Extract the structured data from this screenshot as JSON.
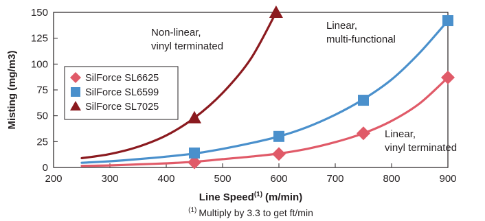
{
  "chart_data": {
    "type": "line",
    "xlabel": "Line Speed",
    "xlabel_superscript": "(1)",
    "xlabel_unit": "(m/min)",
    "ylabel": "Misting (mg/m3)",
    "xlim": [
      200,
      900
    ],
    "ylim": [
      0,
      150
    ],
    "x_ticks": [
      200,
      300,
      400,
      500,
      600,
      700,
      800,
      900
    ],
    "y_ticks": [
      0,
      25,
      50,
      75,
      100,
      125,
      150
    ],
    "grid": false,
    "legend_position": "left",
    "footnote_marker": "(1)",
    "footnote": "Multiply by 3.3 to get ft/min",
    "series": [
      {
        "name": "SilForce SL6625",
        "marker": "diamond",
        "color": "#e05a68",
        "points": [
          [
            450,
            5
          ],
          [
            600,
            13
          ],
          [
            750,
            33
          ],
          [
            900,
            87
          ]
        ],
        "curve": [
          [
            250,
            1.5
          ],
          [
            300,
            2
          ],
          [
            350,
            3
          ],
          [
            400,
            4
          ],
          [
            450,
            5.5
          ],
          [
            500,
            8
          ],
          [
            550,
            10.5
          ],
          [
            600,
            13.5
          ],
          [
            650,
            18
          ],
          [
            700,
            24.5
          ],
          [
            750,
            33
          ],
          [
            800,
            45
          ],
          [
            850,
            62
          ],
          [
            900,
            87
          ]
        ]
      },
      {
        "name": "SilForce SL6599",
        "marker": "square",
        "color": "#4a90cc",
        "points": [
          [
            450,
            14
          ],
          [
            600,
            30
          ],
          [
            750,
            65
          ],
          [
            900,
            142
          ]
        ],
        "curve": [
          [
            250,
            4.5
          ],
          [
            300,
            6
          ],
          [
            350,
            8
          ],
          [
            400,
            10.5
          ],
          [
            450,
            13.5
          ],
          [
            500,
            18
          ],
          [
            550,
            23.5
          ],
          [
            600,
            30
          ],
          [
            650,
            39
          ],
          [
            700,
            51
          ],
          [
            750,
            66
          ],
          [
            800,
            85
          ],
          [
            850,
            111
          ],
          [
            900,
            142
          ]
        ]
      },
      {
        "name": "SilForce SL7025",
        "marker": "triangle",
        "color": "#8b1a1f",
        "points": [
          [
            450,
            48
          ],
          [
            595,
            150
          ]
        ],
        "curve": [
          [
            250,
            9
          ],
          [
            300,
            13
          ],
          [
            350,
            20
          ],
          [
            400,
            31
          ],
          [
            450,
            48
          ],
          [
            500,
            72
          ],
          [
            550,
            105
          ],
          [
            595,
            150
          ]
        ]
      }
    ],
    "annotations": [
      {
        "lines": [
          "Non-linear,",
          "vinyl terminated"
        ]
      },
      {
        "lines": [
          "Linear,",
          "multi-functional"
        ]
      },
      {
        "lines": [
          "Linear,",
          "vinyl terminated"
        ]
      }
    ]
  }
}
